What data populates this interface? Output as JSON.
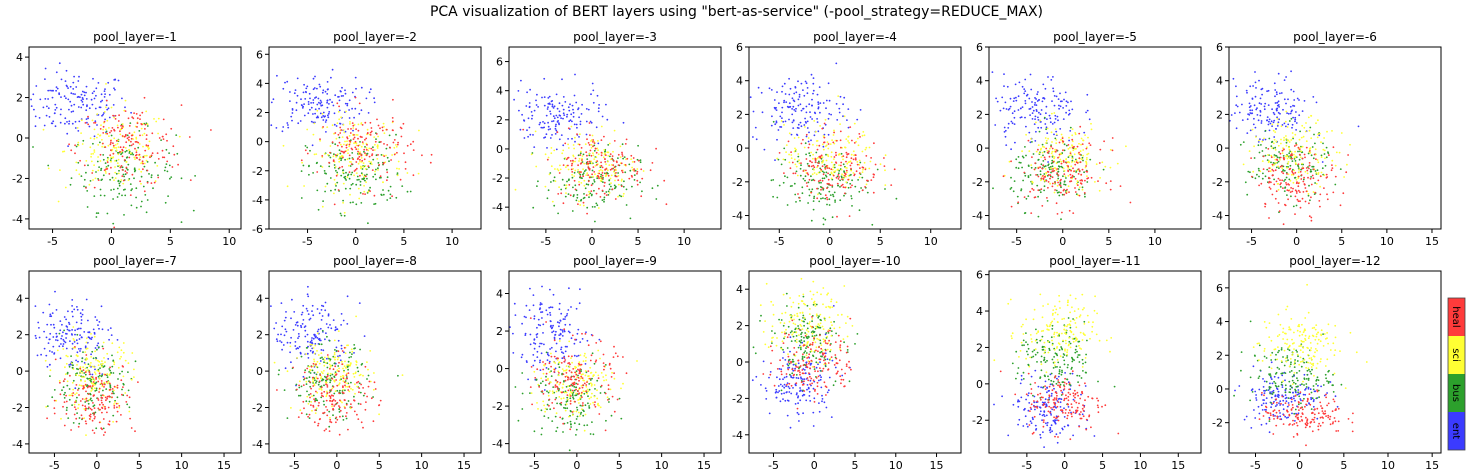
{
  "figure": {
    "title": "PCA visualization of BERT layers using \"bert-as-service\" (-pool_strategy=REDUCE_MAX)"
  },
  "legend": {
    "entries": [
      {
        "label": "heal",
        "color": "#ff3b3b"
      },
      {
        "label": "sci",
        "color": "#ffff33"
      },
      {
        "label": "bus",
        "color": "#2ca02c"
      },
      {
        "label": "ent",
        "color": "#3b3bff"
      }
    ]
  },
  "chart_data": [
    {
      "type": "scatter",
      "title": "pool_layer=-1",
      "xlim": [
        -7,
        11
      ],
      "ylim": [
        -4.5,
        4.5
      ],
      "xticks": [
        -5,
        0,
        5,
        10
      ],
      "yticks": [
        -4,
        -2,
        0,
        2,
        4
      ],
      "clusters": [
        {
          "series": "ent",
          "center": [
            -3,
            1.7
          ],
          "spread": [
            2.2,
            0.8
          ]
        },
        {
          "series": "bus",
          "center": [
            1,
            -1.6
          ],
          "spread": [
            2.2,
            1.0
          ]
        },
        {
          "series": "sci",
          "center": [
            0.5,
            -0.6
          ],
          "spread": [
            2.2,
            1.0
          ]
        },
        {
          "series": "heal",
          "center": [
            1.5,
            -0.4
          ],
          "spread": [
            2.2,
            1.0
          ]
        }
      ]
    },
    {
      "type": "scatter",
      "title": "pool_layer=-2",
      "xlim": [
        -9,
        13
      ],
      "ylim": [
        -6,
        6.5
      ],
      "xticks": [
        -5,
        0,
        5,
        10
      ],
      "yticks": [
        -6,
        -4,
        -2,
        0,
        2,
        4,
        6
      ],
      "clusters": [
        {
          "series": "ent",
          "center": [
            -4,
            2.6
          ],
          "spread": [
            2.5,
            1.0
          ]
        },
        {
          "series": "bus",
          "center": [
            0,
            -2.2
          ],
          "spread": [
            2.5,
            1.3
          ]
        },
        {
          "series": "sci",
          "center": [
            0,
            -0.8
          ],
          "spread": [
            2.5,
            1.3
          ]
        },
        {
          "series": "heal",
          "center": [
            1,
            -0.5
          ],
          "spread": [
            2.5,
            1.3
          ]
        }
      ]
    },
    {
      "type": "scatter",
      "title": "pool_layer=-3",
      "xlim": [
        -9,
        14
      ],
      "ylim": [
        -5.5,
        7
      ],
      "xticks": [
        -5,
        0,
        5,
        10
      ],
      "yticks": [
        -4,
        -2,
        0,
        2,
        4,
        6
      ],
      "clusters": [
        {
          "series": "ent",
          "center": [
            -4,
            2.2
          ],
          "spread": [
            2.5,
            1.0
          ]
        },
        {
          "series": "bus",
          "center": [
            0,
            -2.2
          ],
          "spread": [
            2.5,
            1.2
          ]
        },
        {
          "series": "sci",
          "center": [
            0,
            -1.0
          ],
          "spread": [
            2.5,
            1.2
          ]
        },
        {
          "series": "heal",
          "center": [
            1,
            -1.2
          ],
          "spread": [
            2.5,
            1.2
          ]
        }
      ]
    },
    {
      "type": "scatter",
      "title": "pool_layer=-4",
      "xlim": [
        -8,
        13
      ],
      "ylim": [
        -4.8,
        6
      ],
      "xticks": [
        -5,
        0,
        5,
        10
      ],
      "yticks": [
        -4,
        -2,
        0,
        2,
        4,
        6
      ],
      "clusters": [
        {
          "series": "ent",
          "center": [
            -3,
            2.3
          ],
          "spread": [
            2.3,
            1.0
          ]
        },
        {
          "series": "bus",
          "center": [
            -1,
            -2.0
          ],
          "spread": [
            2.3,
            1.0
          ]
        },
        {
          "series": "sci",
          "center": [
            0,
            -0.5
          ],
          "spread": [
            2.3,
            1.0
          ]
        },
        {
          "series": "heal",
          "center": [
            0.5,
            -1.0
          ],
          "spread": [
            2.3,
            1.0
          ]
        }
      ]
    },
    {
      "type": "scatter",
      "title": "pool_layer=-5",
      "xlim": [
        -8,
        15
      ],
      "ylim": [
        -4.8,
        6
      ],
      "xticks": [
        -5,
        0,
        5,
        10
      ],
      "yticks": [
        -4,
        -2,
        0,
        2,
        4,
        6
      ],
      "clusters": [
        {
          "series": "ent",
          "center": [
            -3,
            2.3
          ],
          "spread": [
            2.3,
            1.0
          ]
        },
        {
          "series": "bus",
          "center": [
            -1,
            -1.5
          ],
          "spread": [
            2.3,
            1.0
          ]
        },
        {
          "series": "sci",
          "center": [
            0,
            -0.5
          ],
          "spread": [
            2.3,
            1.0
          ]
        },
        {
          "series": "heal",
          "center": [
            0,
            -1.5
          ],
          "spread": [
            2.3,
            1.0
          ]
        }
      ]
    },
    {
      "type": "scatter",
      "title": "pool_layer=-6",
      "xlim": [
        -7.5,
        16
      ],
      "ylim": [
        -4.8,
        6
      ],
      "xticks": [
        -5,
        0,
        5,
        10,
        15
      ],
      "yticks": [
        -4,
        -2,
        0,
        2,
        4,
        6
      ],
      "clusters": [
        {
          "series": "ent",
          "center": [
            -3,
            2.2
          ],
          "spread": [
            2.3,
            1.0
          ]
        },
        {
          "series": "bus",
          "center": [
            -1,
            -1.0
          ],
          "spread": [
            2.3,
            1.0
          ]
        },
        {
          "series": "sci",
          "center": [
            0,
            -0.3
          ],
          "spread": [
            2.3,
            1.0
          ]
        },
        {
          "series": "heal",
          "center": [
            0,
            -1.8
          ],
          "spread": [
            2.3,
            1.0
          ]
        }
      ]
    },
    {
      "type": "scatter",
      "title": "pool_layer=-7",
      "xlim": [
        -8,
        17
      ],
      "ylim": [
        -4.5,
        5.5
      ],
      "xticks": [
        -5,
        0,
        5,
        10,
        15
      ],
      "yticks": [
        -4,
        -2,
        0,
        2,
        4
      ],
      "clusters": [
        {
          "series": "ent",
          "center": [
            -3,
            2.0
          ],
          "spread": [
            2.3,
            1.0
          ]
        },
        {
          "series": "bus",
          "center": [
            -1,
            -0.8
          ],
          "spread": [
            2.3,
            1.0
          ]
        },
        {
          "series": "sci",
          "center": [
            -0.5,
            -0.2
          ],
          "spread": [
            2.3,
            1.0
          ]
        },
        {
          "series": "heal",
          "center": [
            0,
            -1.5
          ],
          "spread": [
            2.3,
            1.0
          ]
        }
      ]
    },
    {
      "type": "scatter",
      "title": "pool_layer=-8",
      "xlim": [
        -8,
        17
      ],
      "ylim": [
        -4.5,
        5.5
      ],
      "xticks": [
        -5,
        0,
        5,
        10,
        15
      ],
      "yticks": [
        -4,
        -2,
        0,
        2,
        4
      ],
      "clusters": [
        {
          "series": "ent",
          "center": [
            -3,
            2.0
          ],
          "spread": [
            2.3,
            1.0
          ]
        },
        {
          "series": "bus",
          "center": [
            -1,
            -0.6
          ],
          "spread": [
            2.3,
            1.0
          ]
        },
        {
          "series": "sci",
          "center": [
            -0.5,
            -0.3
          ],
          "spread": [
            2.3,
            1.0
          ]
        },
        {
          "series": "heal",
          "center": [
            0,
            -1.3
          ],
          "spread": [
            2.3,
            1.0
          ]
        }
      ]
    },
    {
      "type": "scatter",
      "title": "pool_layer=-9",
      "xlim": [
        -8,
        17
      ],
      "ylim": [
        -4.5,
        5.2
      ],
      "xticks": [
        -5,
        0,
        5,
        10,
        15
      ],
      "yticks": [
        -4,
        -2,
        0,
        2,
        4
      ],
      "clusters": [
        {
          "series": "ent",
          "center": [
            -3,
            1.8
          ],
          "spread": [
            2.3,
            1.0
          ]
        },
        {
          "series": "bus",
          "center": [
            -1,
            -1.5
          ],
          "spread": [
            2.3,
            1.0
          ]
        },
        {
          "series": "sci",
          "center": [
            -0.5,
            -0.8
          ],
          "spread": [
            2.3,
            1.0
          ]
        },
        {
          "series": "heal",
          "center": [
            0,
            -0.5
          ],
          "spread": [
            2.3,
            1.0
          ]
        }
      ]
    },
    {
      "type": "scatter",
      "title": "pool_layer=-10",
      "xlim": [
        -8,
        18
      ],
      "ylim": [
        -5,
        5
      ],
      "xticks": [
        -5,
        0,
        5,
        10,
        15
      ],
      "yticks": [
        -4,
        -2,
        0,
        2,
        4
      ],
      "clusters": [
        {
          "series": "ent",
          "center": [
            -2,
            -1.2
          ],
          "spread": [
            2.3,
            1.0
          ]
        },
        {
          "series": "bus",
          "center": [
            -1,
            1.2
          ],
          "spread": [
            2.3,
            1.0
          ]
        },
        {
          "series": "sci",
          "center": [
            -1,
            2.0
          ],
          "spread": [
            2.3,
            1.0
          ]
        },
        {
          "series": "heal",
          "center": [
            0,
            0
          ],
          "spread": [
            2.3,
            1.0
          ]
        }
      ]
    },
    {
      "type": "scatter",
      "title": "pool_layer=-11",
      "xlim": [
        -10,
        18
      ],
      "ylim": [
        -3.8,
        6.2
      ],
      "xticks": [
        -5,
        0,
        5,
        10,
        15
      ],
      "yticks": [
        -2,
        0,
        2,
        4,
        6
      ],
      "clusters": [
        {
          "series": "ent",
          "center": [
            -2,
            -1.3
          ],
          "spread": [
            2.5,
            0.9
          ]
        },
        {
          "series": "bus",
          "center": [
            -1,
            1.2
          ],
          "spread": [
            2.5,
            1.0
          ]
        },
        {
          "series": "sci",
          "center": [
            -1,
            2.8
          ],
          "spread": [
            2.5,
            1.0
          ]
        },
        {
          "series": "heal",
          "center": [
            0,
            -1.0
          ],
          "spread": [
            2.5,
            0.8
          ]
        }
      ]
    },
    {
      "type": "scatter",
      "title": "pool_layer=-12",
      "xlim": [
        -8,
        16
      ],
      "ylim": [
        -3.8,
        7
      ],
      "xticks": [
        -5,
        0,
        5,
        10,
        15
      ],
      "yticks": [
        -2,
        0,
        2,
        4,
        6
      ],
      "clusters": [
        {
          "series": "ent",
          "center": [
            -2,
            -0.4
          ],
          "spread": [
            2.3,
            0.8
          ]
        },
        {
          "series": "bus",
          "center": [
            -1,
            0.8
          ],
          "spread": [
            2.3,
            0.9
          ]
        },
        {
          "series": "sci",
          "center": [
            0,
            2.6
          ],
          "spread": [
            2.3,
            1.0
          ]
        },
        {
          "series": "heal",
          "center": [
            0.5,
            -1.5
          ],
          "spread": [
            2.3,
            0.6
          ]
        }
      ]
    }
  ]
}
